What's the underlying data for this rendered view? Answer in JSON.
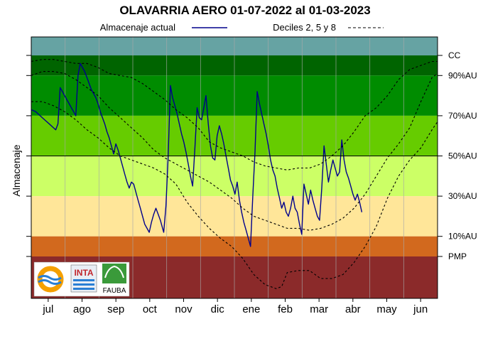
{
  "chart_data": {
    "type": "line",
    "title": "OLAVARRIA AERO 01-07-2022 al 01-03-2023",
    "ylabel": "Almacenaje",
    "xlabel": "",
    "x_unit": "day index from start of period",
    "xlim": [
      0,
      365
    ],
    "ylim": [
      -20,
      125
    ],
    "months": [
      "jul",
      "ago",
      "sep",
      "oct",
      "nov",
      "dic",
      "ene",
      "feb",
      "mar",
      "abr",
      "may",
      "jun"
    ],
    "levels": [
      {
        "label": "CC",
        "value": 100
      },
      {
        "label": "90%AU",
        "value": 90
      },
      {
        "label": "70%AU",
        "value": 70
      },
      {
        "label": "50%AU",
        "value": 50
      },
      {
        "label": "30%AU",
        "value": 30
      },
      {
        "label": "10%AU",
        "value": 10
      },
      {
        "label": "PMP",
        "value": 0
      }
    ],
    "bands": [
      {
        "from": 100,
        "to": 110,
        "color": "#66a3a3"
      },
      {
        "from": 90,
        "to": 100,
        "color": "#006400"
      },
      {
        "from": 70,
        "to": 90,
        "color": "#008c00"
      },
      {
        "from": 50,
        "to": 70,
        "color": "#66cc00"
      },
      {
        "from": 30,
        "to": 50,
        "color": "#ccff66"
      },
      {
        "from": 10,
        "to": 30,
        "color": "#ffe699"
      },
      {
        "from": 0,
        "to": 10,
        "color": "#d2691e"
      },
      {
        "from": -20,
        "to": 0,
        "color": "#8b2a2a"
      }
    ],
    "legend": {
      "actual": "Almacenaje actual",
      "deciles": "Deciles 2, 5 y 8"
    },
    "series": [
      {
        "name": "Almacenaje actual",
        "color": "#00008b",
        "style": "solid",
        "points": [
          [
            0,
            73
          ],
          [
            4,
            72
          ],
          [
            8,
            70
          ],
          [
            12,
            68
          ],
          [
            16,
            66
          ],
          [
            20,
            64
          ],
          [
            22,
            63
          ],
          [
            24,
            66
          ],
          [
            26,
            84
          ],
          [
            28,
            82
          ],
          [
            30,
            80
          ],
          [
            32,
            78
          ],
          [
            34,
            76
          ],
          [
            36,
            74
          ],
          [
            38,
            72
          ],
          [
            40,
            70
          ],
          [
            42,
            90
          ],
          [
            44,
            96
          ],
          [
            46,
            94
          ],
          [
            48,
            92
          ],
          [
            50,
            89
          ],
          [
            52,
            86
          ],
          [
            54,
            83
          ],
          [
            56,
            81
          ],
          [
            58,
            79
          ],
          [
            60,
            76
          ],
          [
            62,
            72
          ],
          [
            64,
            69
          ],
          [
            66,
            66
          ],
          [
            68,
            62
          ],
          [
            70,
            59
          ],
          [
            72,
            55
          ],
          [
            74,
            51
          ],
          [
            76,
            56
          ],
          [
            78,
            53
          ],
          [
            80,
            49
          ],
          [
            82,
            45
          ],
          [
            84,
            41
          ],
          [
            86,
            37
          ],
          [
            88,
            34
          ],
          [
            90,
            37
          ],
          [
            92,
            36
          ],
          [
            94,
            32
          ],
          [
            96,
            28
          ],
          [
            98,
            24
          ],
          [
            100,
            20
          ],
          [
            102,
            16
          ],
          [
            104,
            14
          ],
          [
            106,
            12
          ],
          [
            108,
            17
          ],
          [
            110,
            21
          ],
          [
            112,
            24
          ],
          [
            114,
            21
          ],
          [
            116,
            18
          ],
          [
            118,
            14
          ],
          [
            119,
            12
          ],
          [
            121,
            25
          ],
          [
            123,
            50
          ],
          [
            125,
            85
          ],
          [
            127,
            79
          ],
          [
            129,
            75
          ],
          [
            131,
            71
          ],
          [
            133,
            66
          ],
          [
            135,
            61
          ],
          [
            137,
            57
          ],
          [
            139,
            52
          ],
          [
            141,
            46
          ],
          [
            143,
            40
          ],
          [
            145,
            35
          ],
          [
            147,
            54
          ],
          [
            149,
            74
          ],
          [
            151,
            69
          ],
          [
            153,
            68
          ],
          [
            155,
            74
          ],
          [
            157,
            80
          ],
          [
            159,
            66
          ],
          [
            161,
            55
          ],
          [
            163,
            49
          ],
          [
            165,
            48
          ],
          [
            167,
            60
          ],
          [
            169,
            65
          ],
          [
            171,
            61
          ],
          [
            173,
            56
          ],
          [
            175,
            50
          ],
          [
            177,
            44
          ],
          [
            179,
            38
          ],
          [
            181,
            35
          ],
          [
            183,
            31
          ],
          [
            185,
            37
          ],
          [
            187,
            28
          ],
          [
            189,
            22
          ],
          [
            191,
            17
          ],
          [
            193,
            13
          ],
          [
            195,
            9
          ],
          [
            197,
            5
          ],
          [
            199,
            30
          ],
          [
            201,
            52
          ],
          [
            203,
            82
          ],
          [
            205,
            76
          ],
          [
            207,
            71
          ],
          [
            209,
            66
          ],
          [
            211,
            61
          ],
          [
            213,
            55
          ],
          [
            215,
            48
          ],
          [
            217,
            43
          ],
          [
            219,
            40
          ],
          [
            221,
            34
          ],
          [
            223,
            29
          ],
          [
            225,
            24
          ],
          [
            227,
            27
          ],
          [
            229,
            22
          ],
          [
            231,
            20
          ],
          [
            233,
            24
          ],
          [
            235,
            30
          ],
          [
            237,
            24
          ],
          [
            239,
            22
          ],
          [
            241,
            16
          ],
          [
            243,
            11
          ],
          [
            245,
            36
          ],
          [
            247,
            31
          ],
          [
            249,
            26
          ],
          [
            251,
            33
          ],
          [
            253,
            28
          ],
          [
            255,
            24
          ],
          [
            257,
            20
          ],
          [
            259,
            18
          ],
          [
            261,
            34
          ],
          [
            263,
            55
          ],
          [
            265,
            46
          ],
          [
            267,
            37
          ],
          [
            269,
            43
          ],
          [
            271,
            48
          ],
          [
            273,
            44
          ],
          [
            275,
            40
          ],
          [
            277,
            42
          ],
          [
            279,
            58
          ],
          [
            281,
            48
          ],
          [
            283,
            42
          ],
          [
            285,
            39
          ],
          [
            287,
            35
          ],
          [
            289,
            31
          ],
          [
            291,
            28
          ],
          [
            293,
            31
          ],
          [
            295,
            27
          ],
          [
            297,
            22
          ]
        ]
      },
      {
        "name": "Decil 8",
        "color": "#000000",
        "style": "dashed",
        "points": [
          [
            0,
            97
          ],
          [
            10,
            98
          ],
          [
            20,
            98
          ],
          [
            30,
            97
          ],
          [
            40,
            96
          ],
          [
            50,
            96
          ],
          [
            60,
            94
          ],
          [
            70,
            91
          ],
          [
            80,
            90
          ],
          [
            90,
            89
          ],
          [
            100,
            86
          ],
          [
            110,
            82
          ],
          [
            120,
            78
          ],
          [
            130,
            73
          ],
          [
            140,
            69
          ],
          [
            150,
            64
          ],
          [
            160,
            57
          ],
          [
            170,
            54
          ],
          [
            180,
            52
          ],
          [
            190,
            50
          ],
          [
            200,
            47
          ],
          [
            210,
            45
          ],
          [
            220,
            44
          ],
          [
            230,
            43
          ],
          [
            240,
            44
          ],
          [
            250,
            44
          ],
          [
            260,
            46
          ],
          [
            270,
            50
          ],
          [
            280,
            55
          ],
          [
            290,
            62
          ],
          [
            300,
            70
          ],
          [
            310,
            74
          ],
          [
            320,
            80
          ],
          [
            330,
            88
          ],
          [
            340,
            93
          ],
          [
            350,
            95
          ],
          [
            360,
            97
          ],
          [
            365,
            97
          ]
        ]
      },
      {
        "name": "Decil 5",
        "color": "#000000",
        "style": "dashed",
        "points": [
          [
            0,
            90
          ],
          [
            10,
            92
          ],
          [
            20,
            92
          ],
          [
            30,
            91
          ],
          [
            40,
            88
          ],
          [
            50,
            84
          ],
          [
            60,
            80
          ],
          [
            70,
            74
          ],
          [
            80,
            69
          ],
          [
            90,
            64
          ],
          [
            100,
            59
          ],
          [
            110,
            53
          ],
          [
            120,
            49
          ],
          [
            130,
            46
          ],
          [
            140,
            43
          ],
          [
            150,
            40
          ],
          [
            160,
            37
          ],
          [
            170,
            33
          ],
          [
            180,
            29
          ],
          [
            190,
            24
          ],
          [
            200,
            20
          ],
          [
            210,
            18
          ],
          [
            220,
            16
          ],
          [
            230,
            14
          ],
          [
            240,
            14
          ],
          [
            250,
            13
          ],
          [
            260,
            14
          ],
          [
            270,
            16
          ],
          [
            280,
            19
          ],
          [
            290,
            24
          ],
          [
            300,
            31
          ],
          [
            310,
            40
          ],
          [
            320,
            49
          ],
          [
            330,
            56
          ],
          [
            340,
            64
          ],
          [
            350,
            77
          ],
          [
            360,
            89
          ],
          [
            365,
            91
          ]
        ]
      },
      {
        "name": "Decil 2",
        "color": "#000000",
        "style": "dashed",
        "points": [
          [
            0,
            77
          ],
          [
            10,
            77
          ],
          [
            20,
            75
          ],
          [
            30,
            72
          ],
          [
            40,
            68
          ],
          [
            50,
            63
          ],
          [
            60,
            59
          ],
          [
            70,
            54
          ],
          [
            80,
            50
          ],
          [
            90,
            48
          ],
          [
            100,
            46
          ],
          [
            110,
            44
          ],
          [
            120,
            41
          ],
          [
            130,
            36
          ],
          [
            140,
            27
          ],
          [
            150,
            20
          ],
          [
            160,
            14
          ],
          [
            170,
            9
          ],
          [
            180,
            5
          ],
          [
            190,
            -1
          ],
          [
            200,
            -9
          ],
          [
            210,
            -14
          ],
          [
            220,
            -16
          ],
          [
            225,
            -15
          ],
          [
            230,
            -8
          ],
          [
            240,
            -7
          ],
          [
            250,
            -7
          ],
          [
            260,
            -11
          ],
          [
            270,
            -11
          ],
          [
            280,
            -9
          ],
          [
            290,
            -3
          ],
          [
            300,
            5
          ],
          [
            310,
            15
          ],
          [
            320,
            29
          ],
          [
            330,
            40
          ],
          [
            340,
            48
          ],
          [
            350,
            54
          ],
          [
            360,
            63
          ],
          [
            365,
            67
          ]
        ]
      }
    ],
    "grid": "vertical lines at month boundaries",
    "legend_position": "top"
  },
  "logos": {
    "inta": "INTA",
    "fauba": "FAUBA"
  }
}
